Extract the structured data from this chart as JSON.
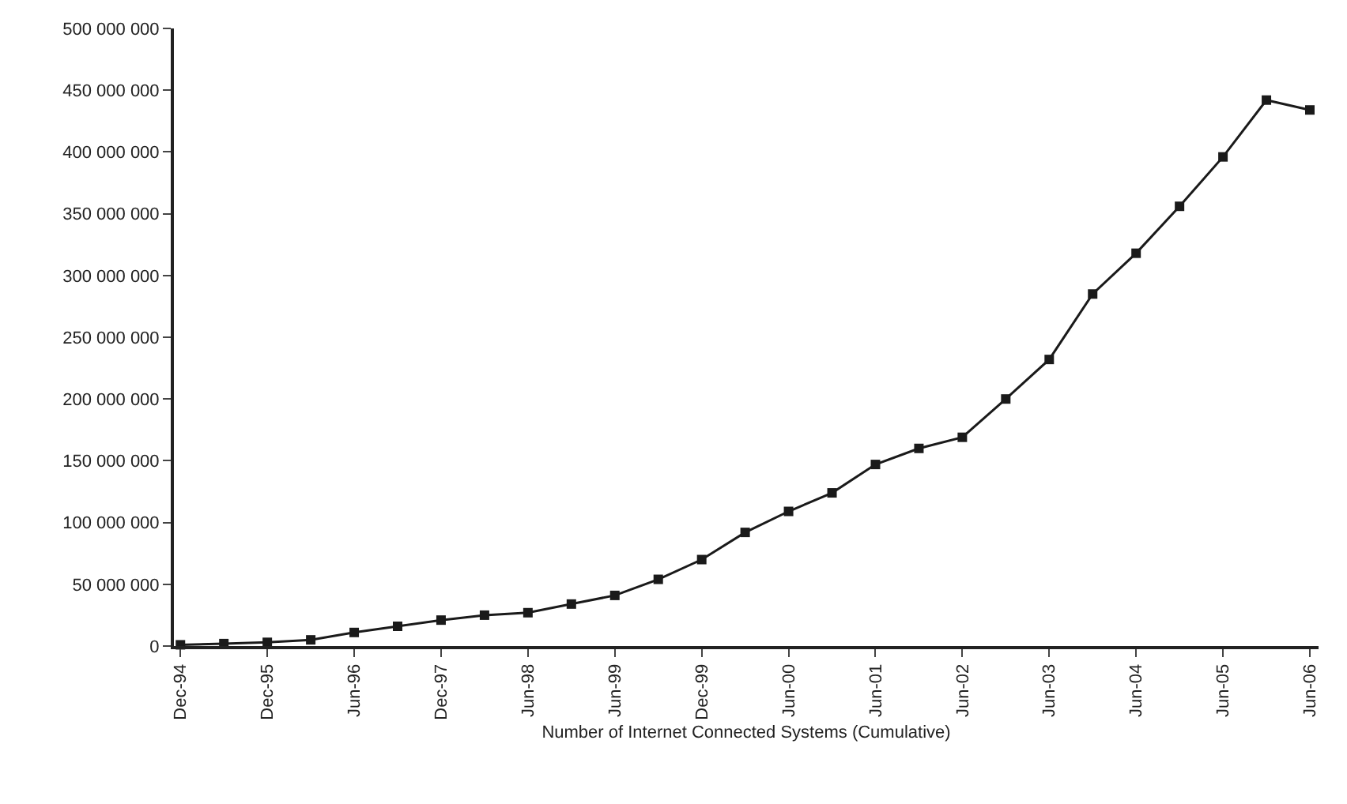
{
  "chart_data": {
    "type": "line",
    "xlabel": "Number of Internet Connected Systems (Cumulative)",
    "categories": [
      "Dec-94",
      null,
      "Dec-95",
      null,
      "Jun-96",
      null,
      "Dec-97",
      null,
      "Jun-98",
      null,
      "Jun-99",
      null,
      "Dec-99",
      null,
      "Jun-00",
      null,
      "Jun-01",
      null,
      "Jun-02",
      null,
      "Jun-03",
      null,
      "Jun-04",
      null,
      "Jun-05",
      null,
      "Jun-06"
    ],
    "series": [
      {
        "color": "#1a1a1a",
        "values": [
          1000000,
          2000000,
          3000000,
          5000000,
          11000000,
          16000000,
          21000000,
          25000000,
          27000000,
          34000000,
          41000000,
          54000000,
          70000000,
          92000000,
          109000000,
          124000000,
          147000000,
          160000000,
          169000000,
          200000000,
          232000000,
          285000000,
          318000000,
          356000000,
          396000000,
          442000000,
          434000000
        ]
      }
    ],
    "ylim": [
      0,
      500000000
    ],
    "yticks": [
      {
        "value": 0,
        "label": "0"
      },
      {
        "value": 50000000,
        "label": "50 000 000"
      },
      {
        "value": 100000000,
        "label": "100 000 000"
      },
      {
        "value": 150000000,
        "label": "150 000 000"
      },
      {
        "value": 200000000,
        "label": "200 000 000"
      },
      {
        "value": 250000000,
        "label": "250 000 000"
      },
      {
        "value": 300000000,
        "label": "300 000 000"
      },
      {
        "value": 350000000,
        "label": "350 000 000"
      },
      {
        "value": 400000000,
        "label": "400 000 000"
      },
      {
        "value": 450000000,
        "label": "450 000 000"
      },
      {
        "value": 500000000,
        "label": "500 000 000"
      }
    ],
    "grid": false,
    "legend": false,
    "marker": "square",
    "line_style": "solid"
  }
}
